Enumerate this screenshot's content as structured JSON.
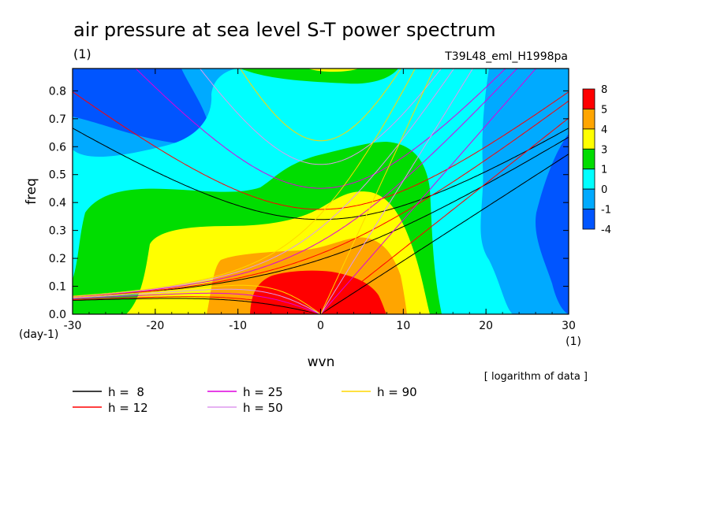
{
  "chart_data": {
    "type": "heatmap",
    "title": "air pressure at sea level S-T power spectrum",
    "title_unit": "(1)",
    "subtitle": "T39L48_eml_H1998pa",
    "xlabel": "wvn",
    "ylabel": "freq",
    "x_unit": "(1)",
    "y_unit": "(day-1)",
    "note": "[ logarithm of data ]",
    "xlim": [
      -30,
      30
    ],
    "ylim": [
      0,
      0.88
    ],
    "xticks": [
      "-30",
      "-20",
      "-10",
      "0",
      "10",
      "20",
      "30"
    ],
    "yticks": [
      "0.0",
      "0.1",
      "0.2",
      "0.3",
      "0.4",
      "0.5",
      "0.6",
      "0.7",
      "0.8"
    ],
    "colorbar": {
      "labels": [
        "8",
        "5",
        "4",
        "3",
        "1",
        "0",
        "-1",
        "-4"
      ],
      "colors": [
        "#ff0000",
        "#ffa500",
        "#ffff00",
        "#00dd00",
        "#00ffff",
        "#00aaff",
        "#0055ff"
      ]
    },
    "dispersion_legend": [
      {
        "label": "h =  8",
        "h": 8,
        "color": "#000000"
      },
      {
        "label": "h = 12",
        "h": 12,
        "color": "#ff0000"
      },
      {
        "label": "h = 25",
        "h": 25,
        "color": "#dd00dd"
      },
      {
        "label": "h = 50",
        "h": 50,
        "color": "#dd99ee"
      },
      {
        "label": "h = 90",
        "h": 90,
        "color": "#ffd700"
      }
    ]
  }
}
